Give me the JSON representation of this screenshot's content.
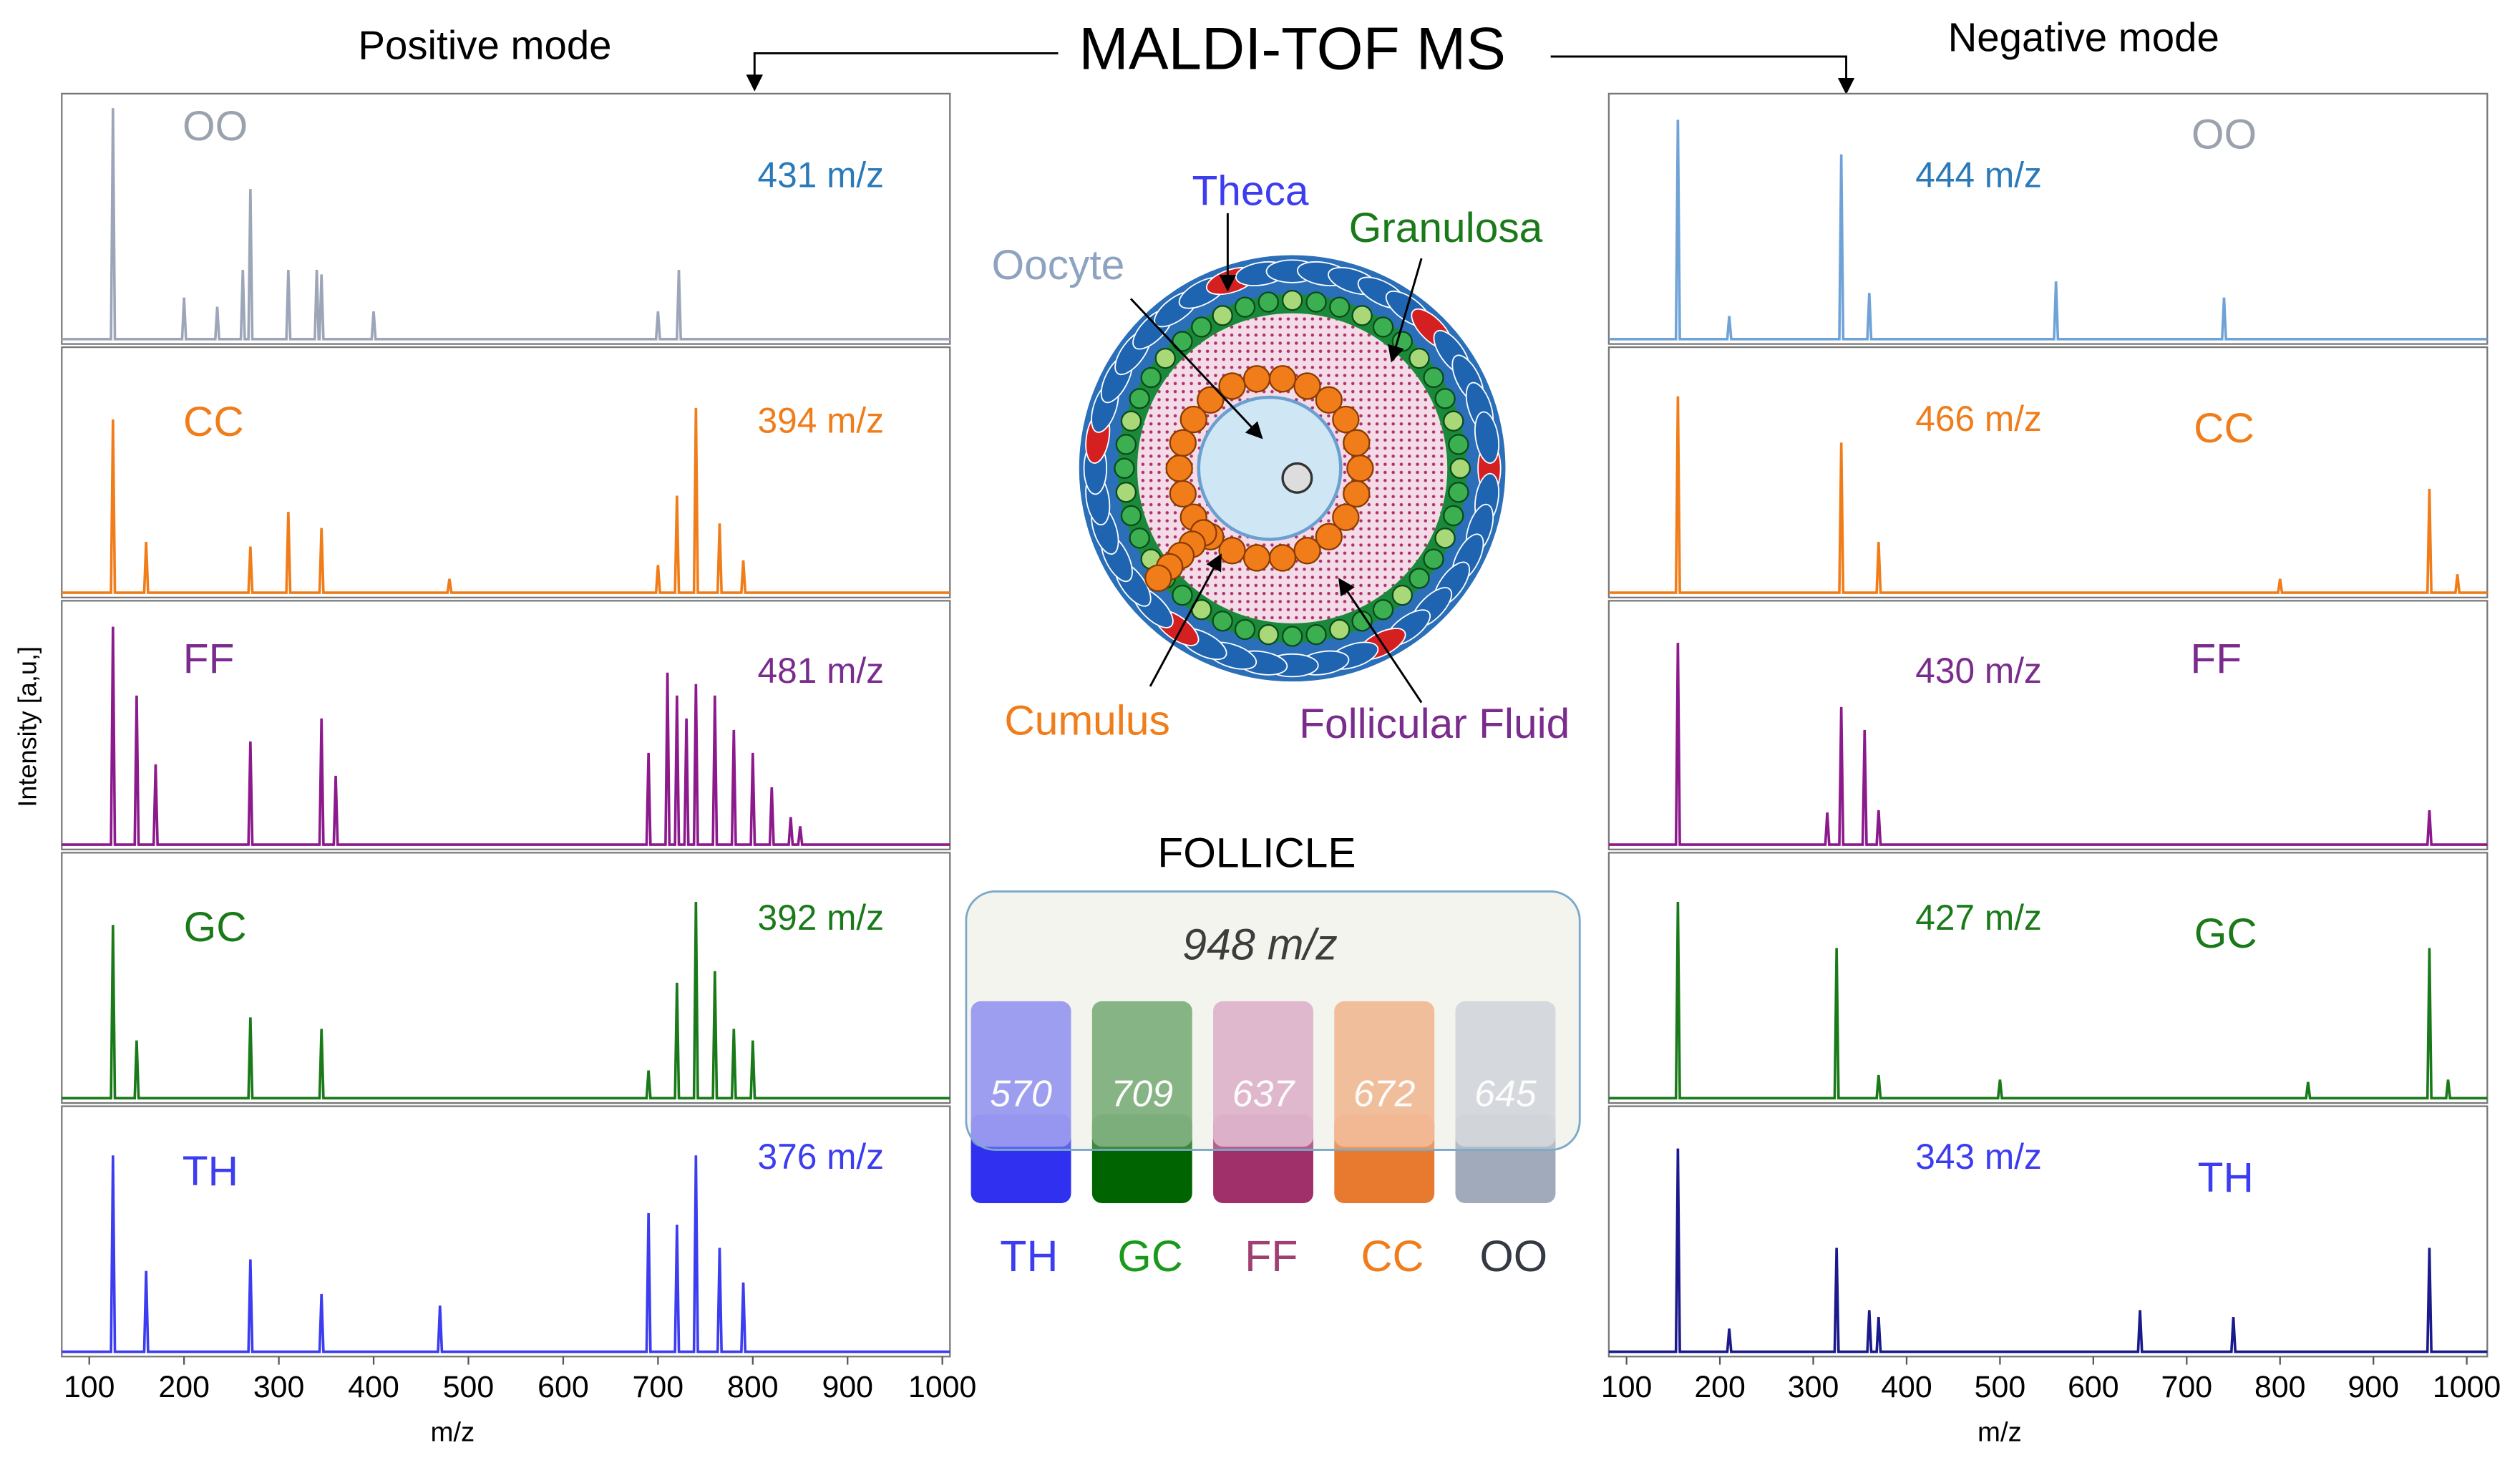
{
  "header": {
    "title": "MALDI-TOF MS",
    "left_title": "Positive mode",
    "right_title": "Negative mode"
  },
  "positive": {
    "y_label": "Intensity [a,u,]",
    "x_label": "m/z",
    "xlim": [
      71,
      1008
    ],
    "xticks": [
      100,
      200,
      300,
      400,
      500,
      600,
      700,
      800,
      900,
      1000
    ],
    "panels": [
      {
        "name": "OO",
        "mz_label": "431 m/z",
        "color": "#9ca6b8",
        "name_color": "#9aa3ad",
        "label_color": "#2a7ab9",
        "peaks": [
          [
            125,
            100
          ],
          [
            200,
            18
          ],
          [
            235,
            14
          ],
          [
            262,
            30
          ],
          [
            270,
            65
          ],
          [
            310,
            30
          ],
          [
            340,
            30
          ],
          [
            345,
            28
          ],
          [
            400,
            12
          ],
          [
            700,
            12
          ],
          [
            722,
            30
          ]
        ]
      },
      {
        "name": "CC",
        "mz_label": "394 m/z",
        "color": "#f07d1a",
        "name_color": "#f07d1a",
        "label_color": "#f07d1a",
        "peaks": [
          [
            125,
            75
          ],
          [
            160,
            22
          ],
          [
            270,
            20
          ],
          [
            310,
            35
          ],
          [
            345,
            28
          ],
          [
            480,
            6
          ],
          [
            700,
            12
          ],
          [
            720,
            42
          ],
          [
            740,
            80
          ],
          [
            765,
            30
          ],
          [
            790,
            14
          ]
        ]
      },
      {
        "name": "FF",
        "mz_label": "481 m/z",
        "color": "#8c1a8c",
        "name_color": "#7a2c8c",
        "label_color": "#7a2c8c",
        "peaks": [
          [
            125,
            95
          ],
          [
            150,
            65
          ],
          [
            170,
            35
          ],
          [
            270,
            45
          ],
          [
            345,
            55
          ],
          [
            360,
            30
          ],
          [
            690,
            40
          ],
          [
            710,
            75
          ],
          [
            720,
            65
          ],
          [
            730,
            55
          ],
          [
            740,
            70
          ],
          [
            760,
            65
          ],
          [
            780,
            50
          ],
          [
            800,
            40
          ],
          [
            820,
            25
          ],
          [
            840,
            12
          ],
          [
            850,
            8
          ]
        ]
      },
      {
        "name": "GC",
        "mz_label": "392 m/z",
        "color": "#1a7a1a",
        "name_color": "#1a7a1a",
        "label_color": "#1a7a1a",
        "peaks": [
          [
            125,
            75
          ],
          [
            150,
            25
          ],
          [
            270,
            35
          ],
          [
            345,
            30
          ],
          [
            690,
            12
          ],
          [
            720,
            50
          ],
          [
            740,
            85
          ],
          [
            760,
            55
          ],
          [
            780,
            30
          ],
          [
            800,
            25
          ]
        ]
      },
      {
        "name": "TH",
        "mz_label": "376 m/z",
        "color": "#3c3cf0",
        "name_color": "#3c3cf0",
        "label_color": "#3c3cf0",
        "peaks": [
          [
            125,
            85
          ],
          [
            160,
            35
          ],
          [
            270,
            40
          ],
          [
            345,
            25
          ],
          [
            470,
            20
          ],
          [
            690,
            60
          ],
          [
            720,
            55
          ],
          [
            740,
            85
          ],
          [
            765,
            45
          ],
          [
            790,
            30
          ]
        ]
      }
    ]
  },
  "negative": {
    "x_label": "m/z",
    "xlim": [
      81,
      1022
    ],
    "xticks": [
      100,
      200,
      300,
      400,
      500,
      600,
      700,
      800,
      900,
      1000
    ],
    "panels": [
      {
        "name": "OO",
        "mz_label": "444 m/z",
        "color": "#6fa3d8",
        "name_color": "#9aa3ad",
        "label_color": "#2a7ab9",
        "peaks": [
          [
            155,
            95
          ],
          [
            210,
            10
          ],
          [
            330,
            80
          ],
          [
            360,
            20
          ],
          [
            560,
            25
          ],
          [
            740,
            18
          ]
        ]
      },
      {
        "name": "CC",
        "mz_label": "466 m/z",
        "color": "#f07d1a",
        "name_color": "#f07d1a",
        "label_color": "#f07d1a",
        "peaks": [
          [
            155,
            85
          ],
          [
            330,
            65
          ],
          [
            370,
            22
          ],
          [
            800,
            6
          ],
          [
            960,
            45
          ],
          [
            990,
            8
          ]
        ]
      },
      {
        "name": "FF",
        "mz_label": "430 m/z",
        "color": "#8c1a8c",
        "name_color": "#7a2c8c",
        "label_color": "#7a2c8c",
        "peaks": [
          [
            155,
            88
          ],
          [
            315,
            14
          ],
          [
            330,
            60
          ],
          [
            355,
            50
          ],
          [
            370,
            15
          ],
          [
            960,
            15
          ]
        ]
      },
      {
        "name": "GC",
        "mz_label": "427 m/z",
        "color": "#1a7a1a",
        "name_color": "#1a7a1a",
        "label_color": "#1a7a1a",
        "peaks": [
          [
            155,
            85
          ],
          [
            325,
            65
          ],
          [
            370,
            10
          ],
          [
            500,
            8
          ],
          [
            830,
            7
          ],
          [
            960,
            65
          ],
          [
            980,
            8
          ]
        ]
      },
      {
        "name": "TH",
        "mz_label": "343 m/z",
        "color": "#1a1a8c",
        "name_color": "#3c3cf0",
        "label_color": "#3c3cf0",
        "peaks": [
          [
            155,
            88
          ],
          [
            210,
            10
          ],
          [
            325,
            45
          ],
          [
            360,
            18
          ],
          [
            370,
            15
          ],
          [
            650,
            18
          ],
          [
            750,
            15
          ],
          [
            960,
            45
          ]
        ]
      }
    ]
  },
  "diagram": {
    "theca": "Theca",
    "granulosa": "Granulosa",
    "oocyte": "Oocyte",
    "cumulus": "Cumulus",
    "fluid": "Follicular Fluid"
  },
  "follicle": {
    "title": "FOLLICLE",
    "total": "948 m/z",
    "bars": [
      {
        "name": "TH",
        "count": 570,
        "light": "#7b7bf0",
        "dark": "#3030f0",
        "text": "#3c3cf0"
      },
      {
        "name": "GC",
        "count": 709,
        "light": "#5a9a5a",
        "dark": "#006400",
        "text": "#1a9a1a"
      },
      {
        "name": "FF",
        "count": 637,
        "light": "#d8a0c0",
        "dark": "#a0306a",
        "text": "#a04070"
      },
      {
        "name": "CC",
        "count": 672,
        "light": "#f0a878",
        "dark": "#e87a30",
        "text": "#f07d1a"
      },
      {
        "name": "OO",
        "count": 645,
        "light": "#c8ccd4",
        "dark": "#a0aabb",
        "text": "#333a44"
      }
    ]
  }
}
